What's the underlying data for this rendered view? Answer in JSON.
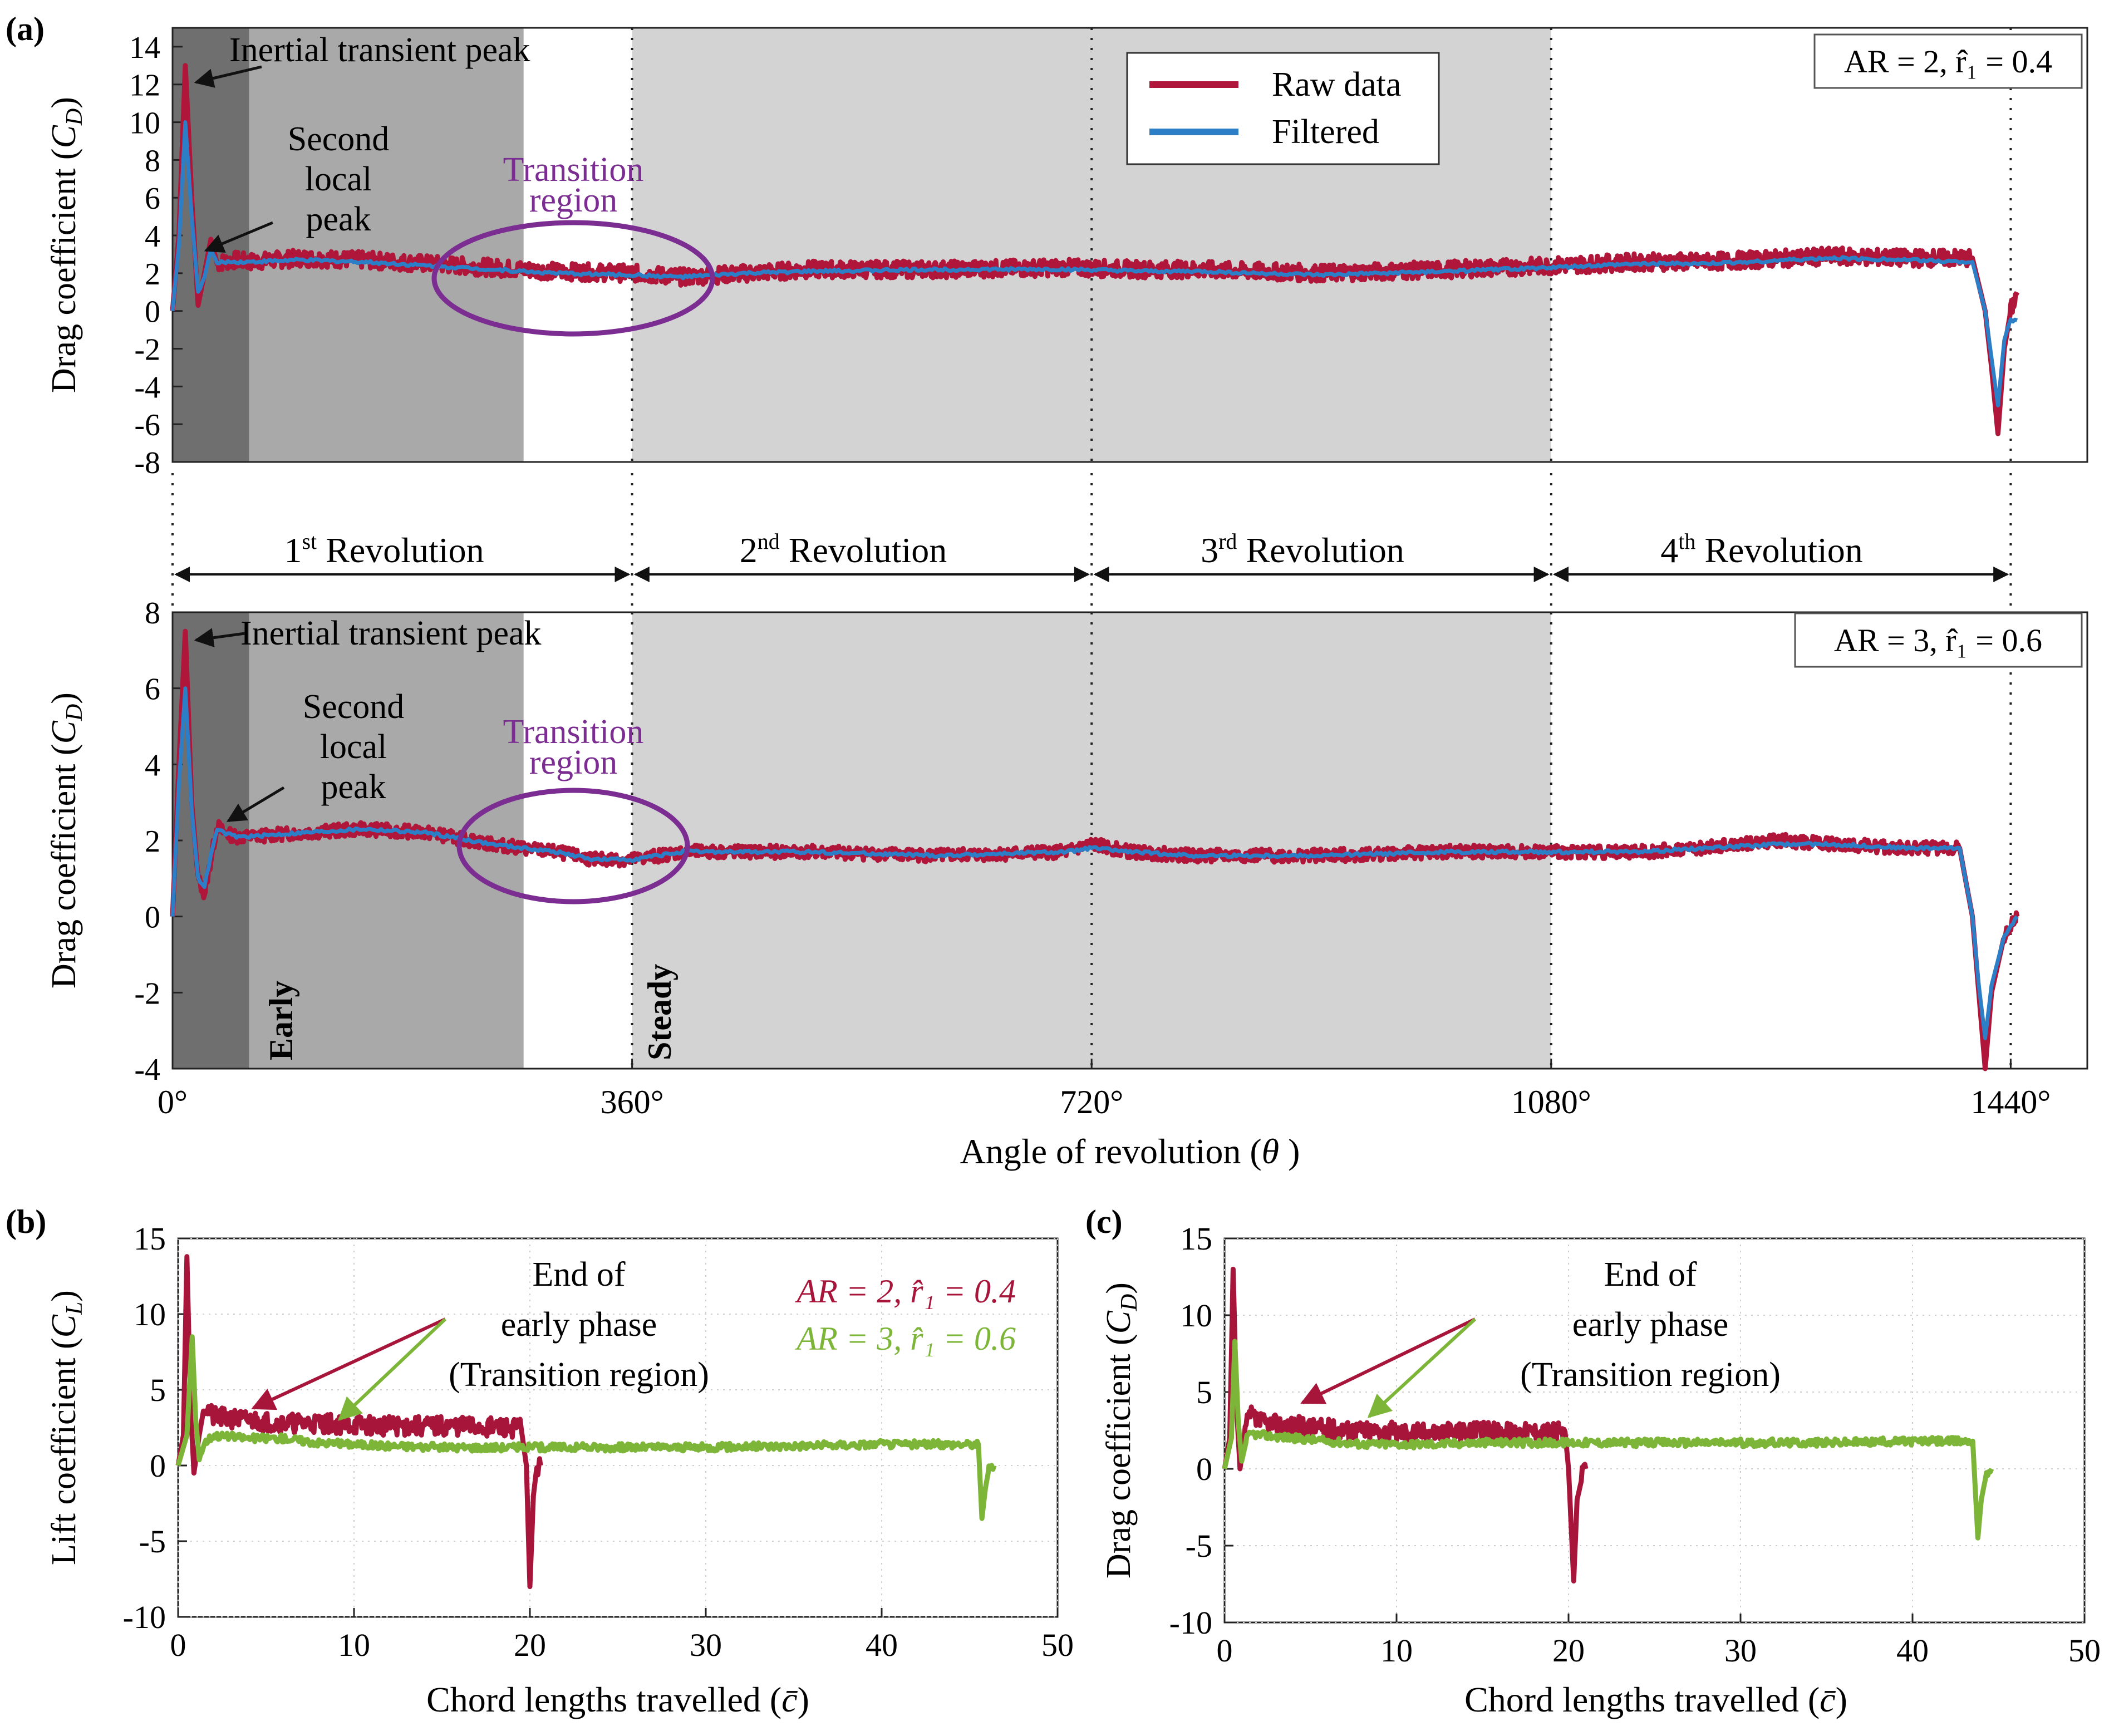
{
  "panel_labels": [
    "(a)",
    "(b)",
    "(c)"
  ],
  "colors": {
    "raw": "#b0163a",
    "filtered": "#2c7fc6",
    "ar2": "#a8153a",
    "ar3": "#7cb537",
    "annotation_purple": "#7b2d91",
    "shade_dark": "#6f6f6f",
    "shade_mid": "#a9a9a9",
    "shade_light": "#d3d3d3"
  },
  "revolutions": {
    "items": [
      "1st Revolution",
      "2nd Revolution",
      "3rd Revolution",
      "4th Revolution"
    ],
    "boundaries_deg": [
      0,
      360,
      720,
      1080,
      1440
    ]
  },
  "phase_labels": {
    "early": "Early",
    "steady": "Steady"
  },
  "chart_data": [
    {
      "id": "a-top",
      "type": "line",
      "title": "",
      "config_label": "AR = 2, r̂₁ = 0.4",
      "xlabel": "",
      "ylabel": "Drag coefficient (C_D)",
      "xlim": [
        0,
        1500
      ],
      "ylim": [
        -8,
        15
      ],
      "yticks": [
        -8,
        -6,
        -4,
        -2,
        0,
        2,
        4,
        6,
        8,
        10,
        12,
        14
      ],
      "legend": {
        "placement": "top-center",
        "entries": [
          "Raw data",
          "Filtered"
        ]
      },
      "shaded_regions_deg": [
        [
          0,
          60,
          "dark"
        ],
        [
          60,
          275,
          "mid"
        ],
        [
          360,
          1080,
          "light"
        ]
      ],
      "annotations": [
        "Inertial transient peak",
        "Second local peak",
        "Transition region"
      ],
      "series": [
        {
          "name": "Raw data",
          "x": [
            0,
            5,
            10,
            15,
            20,
            25,
            30,
            35,
            40,
            50,
            60,
            100,
            150,
            200,
            250,
            300,
            360,
            400,
            450,
            500,
            600,
            700,
            760,
            800,
            900,
            1000,
            1080,
            1150,
            1200,
            1300,
            1360,
            1410,
            1420,
            1425,
            1430,
            1435,
            1440,
            1445
          ],
          "y": [
            0,
            4,
            13,
            6,
            0.3,
            2,
            3.8,
            2.5,
            2.6,
            2.7,
            2.6,
            2.8,
            2.7,
            2.5,
            2.3,
            2.1,
            2.0,
            1.8,
            2.0,
            2.2,
            2.2,
            2.3,
            2.2,
            2.2,
            2.0,
            2.2,
            2.4,
            2.6,
            2.6,
            2.9,
            2.8,
            2.8,
            0,
            -3,
            -6.5,
            -2,
            0,
            1
          ]
        },
        {
          "name": "Filtered",
          "x": [
            0,
            5,
            10,
            15,
            20,
            25,
            30,
            35,
            40,
            50,
            60,
            100,
            150,
            200,
            250,
            300,
            360,
            400,
            450,
            500,
            600,
            700,
            760,
            800,
            900,
            1000,
            1080,
            1150,
            1200,
            1300,
            1360,
            1410,
            1420,
            1425,
            1430,
            1435,
            1440,
            1445
          ],
          "y": [
            0,
            3.5,
            10,
            5,
            1,
            1.8,
            3.3,
            2.5,
            2.6,
            2.6,
            2.6,
            2.7,
            2.6,
            2.4,
            2.2,
            2.0,
            1.9,
            1.8,
            2.0,
            2.1,
            2.2,
            2.2,
            2.1,
            2.1,
            1.9,
            2.1,
            2.3,
            2.5,
            2.5,
            2.8,
            2.7,
            2.6,
            0,
            -2.5,
            -5,
            -1.5,
            -0.5,
            -0.5
          ]
        }
      ]
    },
    {
      "id": "a-bottom",
      "type": "line",
      "title": "",
      "config_label": "AR = 3, r̂₁ = 0.6",
      "xlabel": "Angle of revolution (θ)",
      "ylabel": "Drag coefficient (C_D)",
      "xlim": [
        0,
        1500
      ],
      "ylim": [
        -4,
        8
      ],
      "yticks": [
        -4,
        -2,
        0,
        2,
        4,
        6,
        8
      ],
      "xticks": [
        0,
        360,
        720,
        1080,
        1440
      ],
      "xticklabels": [
        "0°",
        "360°",
        "720°",
        "1080°",
        "1440°"
      ],
      "shaded_regions_deg": [
        [
          0,
          60,
          "dark"
        ],
        [
          60,
          275,
          "mid"
        ],
        [
          360,
          1080,
          "light"
        ]
      ],
      "annotations": [
        "Inertial transient peak",
        "Second local peak",
        "Transition region"
      ],
      "series": [
        {
          "name": "Raw data",
          "x": [
            0,
            5,
            10,
            15,
            20,
            25,
            30,
            35,
            40,
            50,
            60,
            100,
            150,
            200,
            250,
            300,
            330,
            360,
            400,
            500,
            600,
            700,
            720,
            750,
            800,
            900,
            1000,
            1080,
            1150,
            1200,
            1260,
            1300,
            1360,
            1400,
            1410,
            1415,
            1420,
            1425,
            1435,
            1445
          ],
          "y": [
            0,
            4,
            7.5,
            3,
            1,
            0.6,
            1.5,
            2.4,
            2.2,
            2.1,
            2.1,
            2.2,
            2.3,
            2.2,
            1.9,
            1.7,
            1.5,
            1.5,
            1.7,
            1.7,
            1.6,
            1.7,
            1.9,
            1.7,
            1.6,
            1.6,
            1.7,
            1.7,
            1.7,
            1.8,
            2.0,
            1.9,
            1.8,
            1.8,
            0,
            -2,
            -4,
            -2,
            -0.5,
            0
          ]
        },
        {
          "name": "Filtered",
          "x": [
            0,
            5,
            10,
            15,
            20,
            25,
            30,
            35,
            40,
            50,
            60,
            100,
            150,
            200,
            250,
            300,
            330,
            360,
            400,
            500,
            600,
            700,
            720,
            750,
            800,
            900,
            1000,
            1080,
            1150,
            1200,
            1260,
            1300,
            1360,
            1400,
            1410,
            1415,
            1420,
            1425,
            1435,
            1445
          ],
          "y": [
            0,
            3.5,
            6,
            2.8,
            1,
            0.8,
            1.6,
            2.3,
            2.2,
            2.1,
            2.1,
            2.2,
            2.3,
            2.2,
            1.9,
            1.7,
            1.5,
            1.5,
            1.7,
            1.7,
            1.6,
            1.7,
            1.8,
            1.7,
            1.6,
            1.6,
            1.7,
            1.7,
            1.7,
            1.8,
            1.9,
            1.9,
            1.8,
            1.8,
            0,
            -1.8,
            -3.2,
            -1.8,
            -0.5,
            0
          ]
        }
      ]
    },
    {
      "id": "b",
      "type": "line",
      "title": "",
      "xlabel": "Chord lengths travelled (c̄)",
      "ylabel": "Lift coefficient (C_L)",
      "xlim": [
        0,
        50
      ],
      "ylim": [
        -10,
        15
      ],
      "xticks": [
        0,
        10,
        20,
        30,
        40,
        50
      ],
      "yticks": [
        -10,
        -5,
        0,
        5,
        10,
        15
      ],
      "annotation": [
        "End of",
        "early phase",
        "(Transition region)"
      ],
      "series": [
        {
          "name": "AR = 2, r̂₁ = 0.4",
          "x": [
            0,
            0.3,
            0.5,
            0.7,
            0.9,
            1.2,
            1.5,
            2,
            4,
            6,
            8,
            10,
            12,
            14,
            16,
            18,
            19.5,
            19.8,
            20,
            20.2,
            20.4,
            20.6
          ],
          "y": [
            0,
            2,
            13.8,
            4,
            -0.5,
            2,
            4,
            3.2,
            3.0,
            2.8,
            2.8,
            2.7,
            2.6,
            2.6,
            2.6,
            2.5,
            2.5,
            0,
            -8,
            -2,
            0,
            0
          ]
        },
        {
          "name": "AR = 3, r̂₁ = 0.6",
          "x": [
            0,
            0.5,
            0.8,
            1.0,
            1.2,
            1.5,
            2,
            4,
            6,
            8,
            10,
            12,
            15,
            20,
            25,
            30,
            35,
            40,
            44,
            45.5,
            45.7,
            45.9,
            46.1,
            46.4
          ],
          "y": [
            0,
            2,
            8.5,
            3,
            0.5,
            1.5,
            2,
            1.8,
            1.8,
            1.5,
            1.4,
            1.3,
            1.2,
            1.2,
            1.2,
            1.2,
            1.3,
            1.4,
            1.4,
            1.4,
            -3.5,
            -1.5,
            -0.2,
            0
          ]
        }
      ],
      "legend": {
        "placement": "top-right"
      }
    },
    {
      "id": "c",
      "type": "line",
      "title": "",
      "xlabel": "Chord lengths travelled (c̄)",
      "ylabel": "Drag coefficient (C_D)",
      "xlim": [
        0,
        50
      ],
      "ylim": [
        -10,
        15
      ],
      "xticks": [
        0,
        10,
        20,
        30,
        40,
        50
      ],
      "yticks": [
        -10,
        -5,
        0,
        5,
        10,
        15
      ],
      "annotation": [
        "End of",
        "early phase",
        "(Transition region)"
      ],
      "series": [
        {
          "name": "AR = 2, r̂₁ = 0.4",
          "x": [
            0,
            0.3,
            0.5,
            0.7,
            0.9,
            1.2,
            1.5,
            2,
            4,
            6,
            8,
            10,
            12,
            14,
            16,
            18,
            19.8,
            20.0,
            20.3,
            20.5,
            20.8,
            21
          ],
          "y": [
            0,
            2,
            13,
            4,
            0,
            2.5,
            3.5,
            3.0,
            2.8,
            2.6,
            2.5,
            2.4,
            2.4,
            2.4,
            2.4,
            2.4,
            2.4,
            0,
            -7.3,
            -2,
            -0.5,
            0
          ]
        },
        {
          "name": "AR = 3, r̂₁ = 0.6",
          "x": [
            0,
            0.4,
            0.6,
            0.8,
            1.0,
            1.3,
            1.6,
            2,
            4,
            6,
            8,
            10,
            12,
            15,
            20,
            25,
            30,
            35,
            40,
            43.5,
            43.8,
            44.0,
            44.3,
            44.6
          ],
          "y": [
            0,
            2,
            8.3,
            3,
            0.5,
            2,
            2.3,
            2.2,
            2.0,
            1.8,
            1.6,
            1.6,
            1.6,
            1.7,
            1.7,
            1.7,
            1.7,
            1.7,
            1.8,
            1.8,
            -4.5,
            -2,
            -0.3,
            0
          ]
        }
      ]
    }
  ]
}
